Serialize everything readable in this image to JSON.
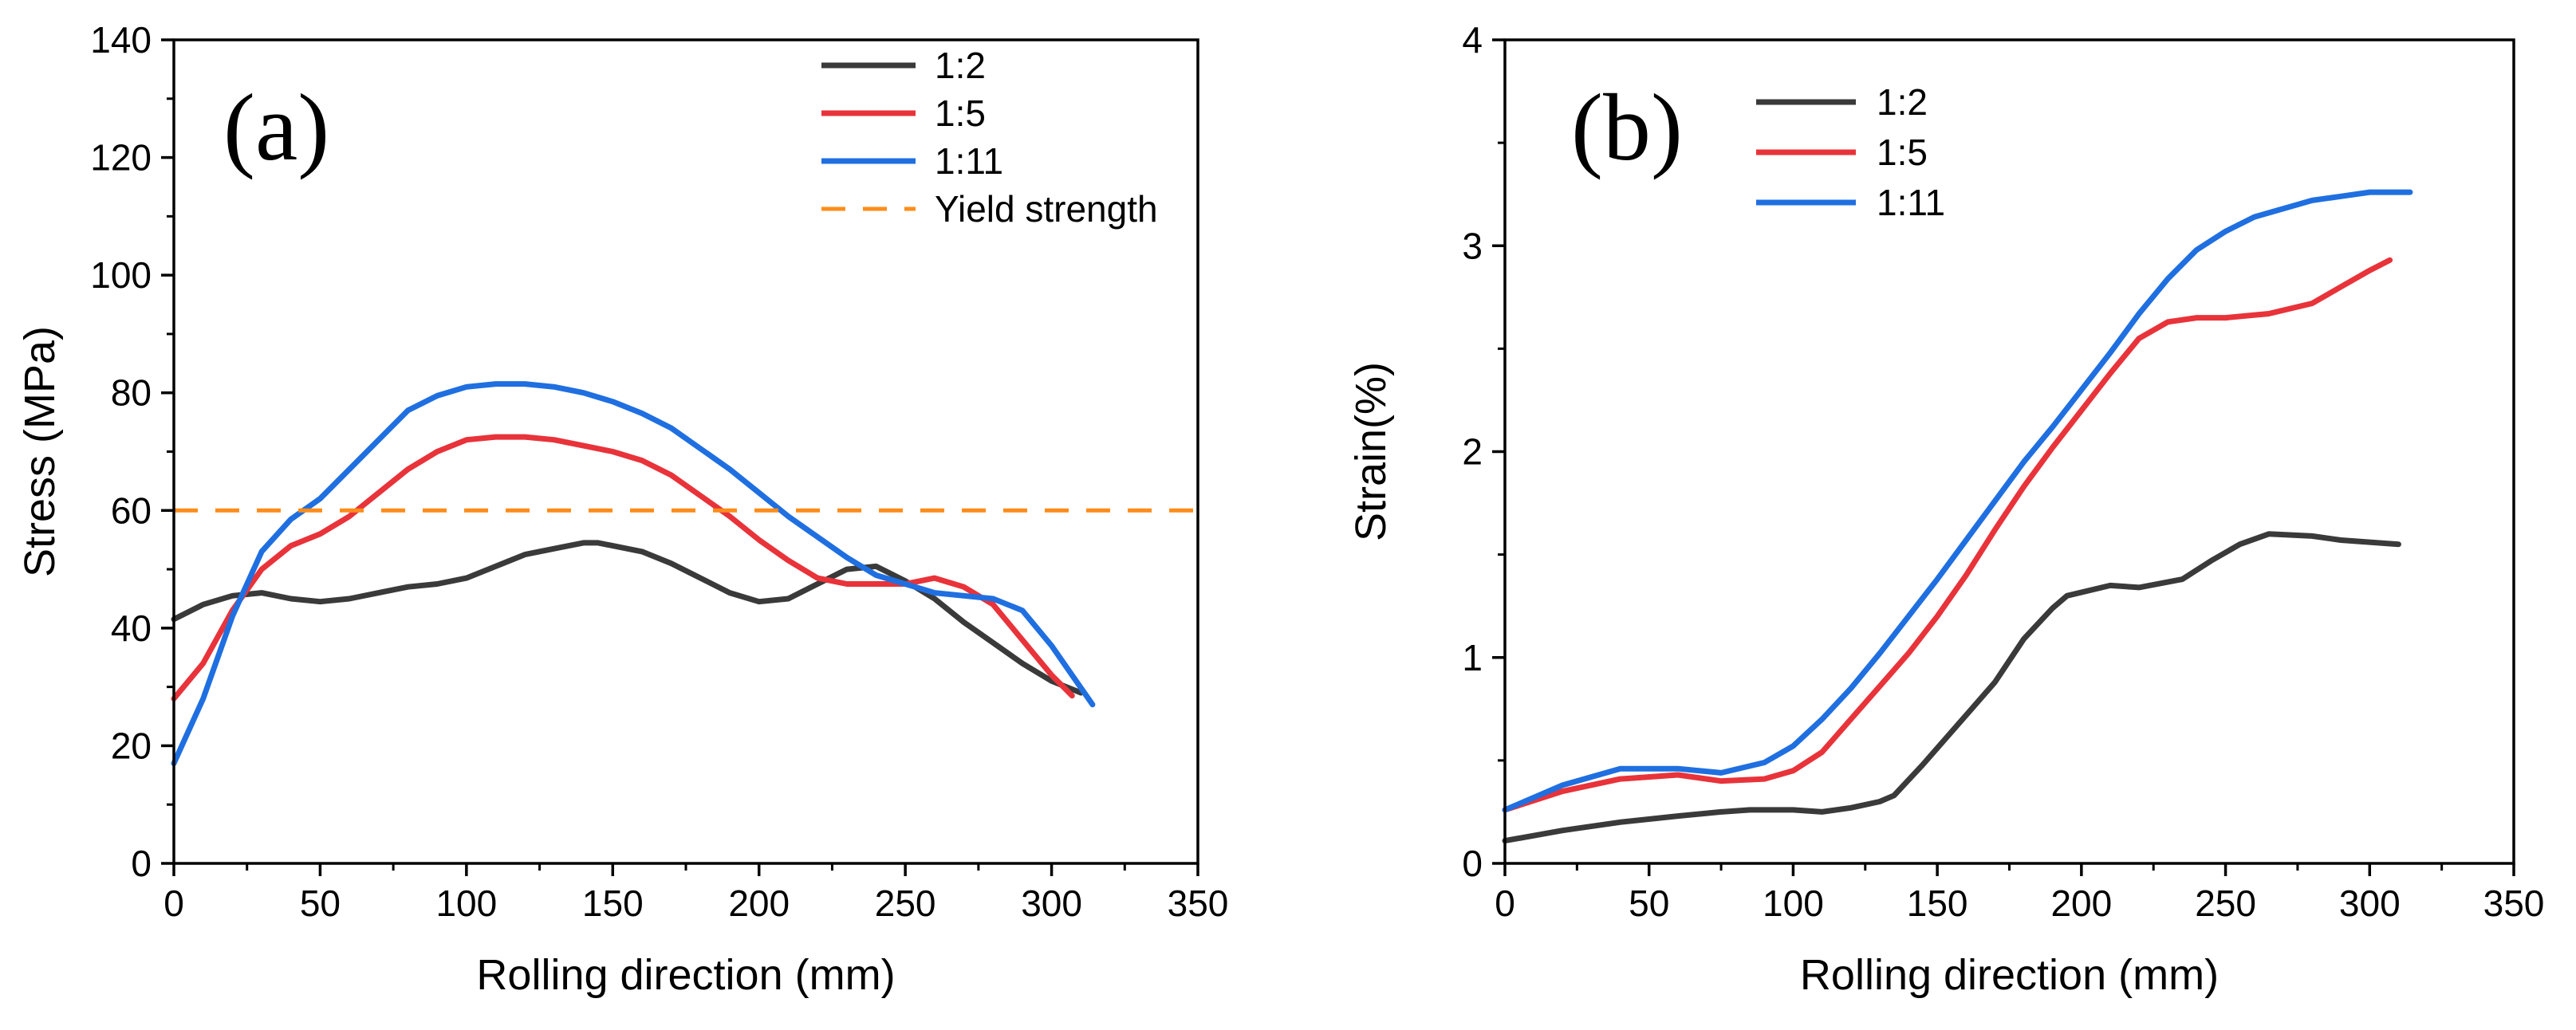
{
  "chart_data": [
    {
      "type": "line",
      "panel_label": "(a)",
      "xlabel": "Rolling direction (mm)",
      "ylabel": "Stress (MPa)",
      "xlim": [
        0,
        350
      ],
      "ylim": [
        0,
        140
      ],
      "xticks": [
        "0",
        "50",
        "100",
        "150",
        "200",
        "250",
        "300",
        "350"
      ],
      "yticks": [
        "0",
        "20",
        "40",
        "60",
        "80",
        "100",
        "120",
        "140"
      ],
      "legend_position": "top-right",
      "series": [
        {
          "name": "1:2",
          "color": "#3a3a3a",
          "style": "solid",
          "x": [
            0,
            10,
            20,
            30,
            40,
            50,
            60,
            70,
            80,
            90,
            100,
            110,
            120,
            130,
            140,
            145,
            150,
            160,
            170,
            180,
            190,
            200,
            210,
            220,
            230,
            240,
            250,
            260,
            270,
            280,
            290,
            300,
            310
          ],
          "y": [
            41.5,
            44,
            45.5,
            46,
            45,
            44.5,
            45,
            46,
            47,
            47.5,
            48.5,
            50.5,
            52.5,
            53.5,
            54.5,
            54.5,
            54,
            53,
            51,
            48.5,
            46,
            44.5,
            45,
            47.5,
            50,
            50.5,
            48,
            45,
            41,
            37.5,
            34,
            31,
            29
          ]
        },
        {
          "name": "1:5",
          "color": "#e8333a",
          "style": "solid",
          "x": [
            0,
            10,
            20,
            30,
            40,
            50,
            60,
            70,
            80,
            90,
            100,
            110,
            120,
            130,
            140,
            150,
            160,
            170,
            180,
            190,
            200,
            210,
            220,
            230,
            240,
            250,
            260,
            270,
            280,
            290,
            300,
            307
          ],
          "y": [
            28,
            34,
            43,
            50,
            54,
            56,
            59,
            63,
            67,
            70,
            72,
            72.5,
            72.5,
            72,
            71,
            70,
            68.5,
            66,
            62.5,
            59,
            55,
            51.5,
            48.5,
            47.5,
            47.5,
            47.5,
            48.5,
            47,
            44,
            38,
            32,
            28.5
          ]
        },
        {
          "name": "1:11",
          "color": "#1f6fe0",
          "style": "solid",
          "x": [
            0,
            10,
            20,
            30,
            40,
            50,
            60,
            70,
            80,
            90,
            100,
            110,
            120,
            130,
            140,
            150,
            160,
            170,
            180,
            190,
            200,
            210,
            220,
            230,
            240,
            250,
            260,
            270,
            280,
            290,
            300,
            314
          ],
          "y": [
            17,
            28,
            42,
            53,
            58.5,
            62,
            67,
            72,
            77,
            79.5,
            81,
            81.5,
            81.5,
            81,
            80,
            78.5,
            76.5,
            74,
            70.5,
            67,
            63,
            59,
            55.5,
            52,
            49,
            47.5,
            46,
            45.5,
            45,
            43,
            37,
            27
          ]
        },
        {
          "name": "Yield strength",
          "color": "#ff8c1a",
          "style": "dashed",
          "x": [
            0,
            350
          ],
          "y": [
            60,
            60
          ]
        }
      ]
    },
    {
      "type": "line",
      "panel_label": "(b)",
      "xlabel": "Rolling direction (mm)",
      "ylabel": "Strain(%)",
      "xlim": [
        0,
        350
      ],
      "ylim": [
        0,
        4
      ],
      "xticks": [
        "0",
        "50",
        "100",
        "150",
        "200",
        "250",
        "300",
        "350"
      ],
      "yticks": [
        "0",
        "1",
        "2",
        "3",
        "4"
      ],
      "legend_position": "top-left",
      "series": [
        {
          "name": "1:2",
          "color": "#3a3a3a",
          "style": "solid",
          "x": [
            0,
            20,
            40,
            60,
            75,
            85,
            100,
            110,
            120,
            130,
            135,
            145,
            160,
            170,
            180,
            190,
            195,
            210,
            220,
            235,
            245,
            255,
            265,
            280,
            290,
            300,
            310
          ],
          "y": [
            0.11,
            0.16,
            0.2,
            0.23,
            0.25,
            0.26,
            0.26,
            0.25,
            0.27,
            0.3,
            0.33,
            0.48,
            0.72,
            0.88,
            1.09,
            1.24,
            1.3,
            1.35,
            1.34,
            1.38,
            1.47,
            1.55,
            1.6,
            1.59,
            1.57,
            1.56,
            1.55
          ]
        },
        {
          "name": "1:5",
          "color": "#e8333a",
          "style": "solid",
          "x": [
            0,
            20,
            40,
            60,
            75,
            90,
            100,
            110,
            120,
            130,
            140,
            150,
            160,
            170,
            180,
            190,
            200,
            210,
            220,
            230,
            240,
            250,
            265,
            280,
            290,
            300,
            307
          ],
          "y": [
            0.26,
            0.35,
            0.41,
            0.43,
            0.4,
            0.41,
            0.45,
            0.54,
            0.7,
            0.86,
            1.02,
            1.2,
            1.4,
            1.62,
            1.83,
            2.02,
            2.2,
            2.38,
            2.55,
            2.63,
            2.65,
            2.65,
            2.67,
            2.72,
            2.8,
            2.88,
            2.93
          ]
        },
        {
          "name": "1:11",
          "color": "#1f6fe0",
          "style": "solid",
          "x": [
            0,
            20,
            40,
            60,
            75,
            90,
            100,
            110,
            120,
            130,
            140,
            150,
            160,
            170,
            180,
            190,
            200,
            210,
            220,
            230,
            240,
            250,
            260,
            270,
            280,
            290,
            300,
            314
          ],
          "y": [
            0.26,
            0.38,
            0.46,
            0.46,
            0.44,
            0.49,
            0.57,
            0.7,
            0.85,
            1.02,
            1.2,
            1.38,
            1.57,
            1.76,
            1.95,
            2.12,
            2.3,
            2.48,
            2.67,
            2.84,
            2.98,
            3.07,
            3.14,
            3.18,
            3.22,
            3.24,
            3.26,
            3.26
          ]
        }
      ]
    }
  ]
}
